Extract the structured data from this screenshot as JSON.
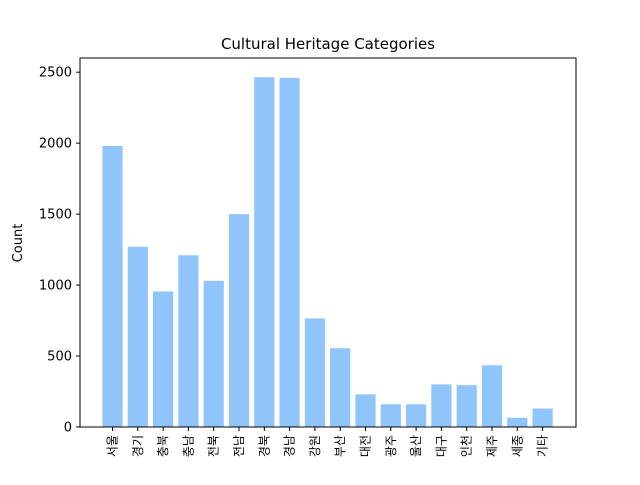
{
  "chart_data": {
    "type": "bar",
    "title": "Cultural Heritage Categories",
    "xlabel": "",
    "ylabel": "Count",
    "categories": [
      "서울",
      "경기",
      "충북",
      "충남",
      "전북",
      "전남",
      "경북",
      "경남",
      "강원",
      "부산",
      "대전",
      "광주",
      "울산",
      "대구",
      "인천",
      "제주",
      "세종",
      "기타"
    ],
    "values": [
      1980,
      1270,
      955,
      1210,
      1030,
      1500,
      2465,
      2460,
      765,
      555,
      230,
      160,
      160,
      300,
      295,
      435,
      65,
      130
    ],
    "ylim": [
      0,
      2600
    ],
    "yticks": [
      0,
      500,
      1000,
      1500,
      2000,
      2500
    ],
    "grid": false,
    "bar_color": "#90c5fb"
  }
}
